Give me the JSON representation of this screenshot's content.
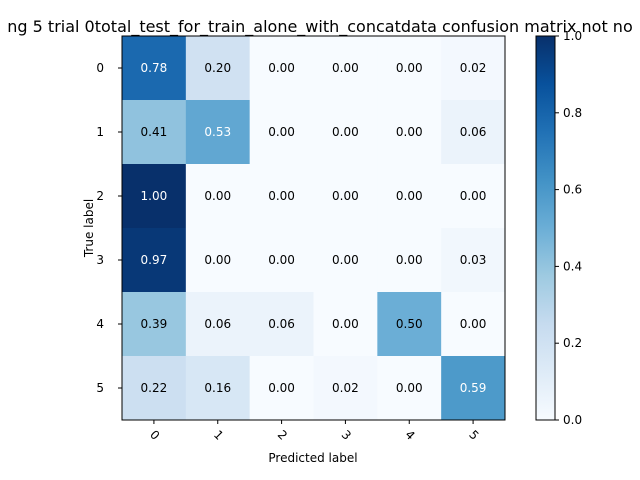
{
  "chart_data": {
    "type": "heatmap",
    "title": "ng 5 trial 0total_test_for_train_alone_with_concatdata confusion matrix not no",
    "xlabel": "Predicted label",
    "ylabel": "True label",
    "x_categories": [
      "0",
      "1",
      "2",
      "3",
      "4",
      "5"
    ],
    "y_categories": [
      "0",
      "1",
      "2",
      "3",
      "4",
      "5"
    ],
    "values": [
      [
        0.78,
        0.2,
        0.0,
        0.0,
        0.0,
        0.02
      ],
      [
        0.41,
        0.53,
        0.0,
        0.0,
        0.0,
        0.06
      ],
      [
        1.0,
        0.0,
        0.0,
        0.0,
        0.0,
        0.0
      ],
      [
        0.97,
        0.0,
        0.0,
        0.0,
        0.0,
        0.03
      ],
      [
        0.39,
        0.06,
        0.06,
        0.0,
        0.5,
        0.0
      ],
      [
        0.22,
        0.16,
        0.0,
        0.02,
        0.0,
        0.59
      ]
    ],
    "value_labels": [
      [
        "0.78",
        "0.20",
        "0.00",
        "0.00",
        "0.00",
        "0.02"
      ],
      [
        "0.41",
        "0.53",
        "0.00",
        "0.00",
        "0.00",
        "0.06"
      ],
      [
        "1.00",
        "0.00",
        "0.00",
        "0.00",
        "0.00",
        "0.00"
      ],
      [
        "0.97",
        "0.00",
        "0.00",
        "0.00",
        "0.00",
        "0.03"
      ],
      [
        "0.39",
        "0.06",
        "0.06",
        "0.00",
        "0.50",
        "0.00"
      ],
      [
        "0.22",
        "0.16",
        "0.00",
        "0.02",
        "0.00",
        "0.59"
      ]
    ],
    "colormap": "Blues",
    "vmin": 0.0,
    "vmax": 1.0,
    "colorbar_ticks": [
      "0.0",
      "0.2",
      "0.4",
      "0.6",
      "0.8",
      "1.0"
    ],
    "colorbar_tick_values": [
      0.0,
      0.2,
      0.4,
      0.6,
      0.8,
      1.0
    ],
    "text_color_dark": "#000000",
    "text_color_light": "#ffffff",
    "grid": false,
    "legend": "colorbar-right"
  }
}
